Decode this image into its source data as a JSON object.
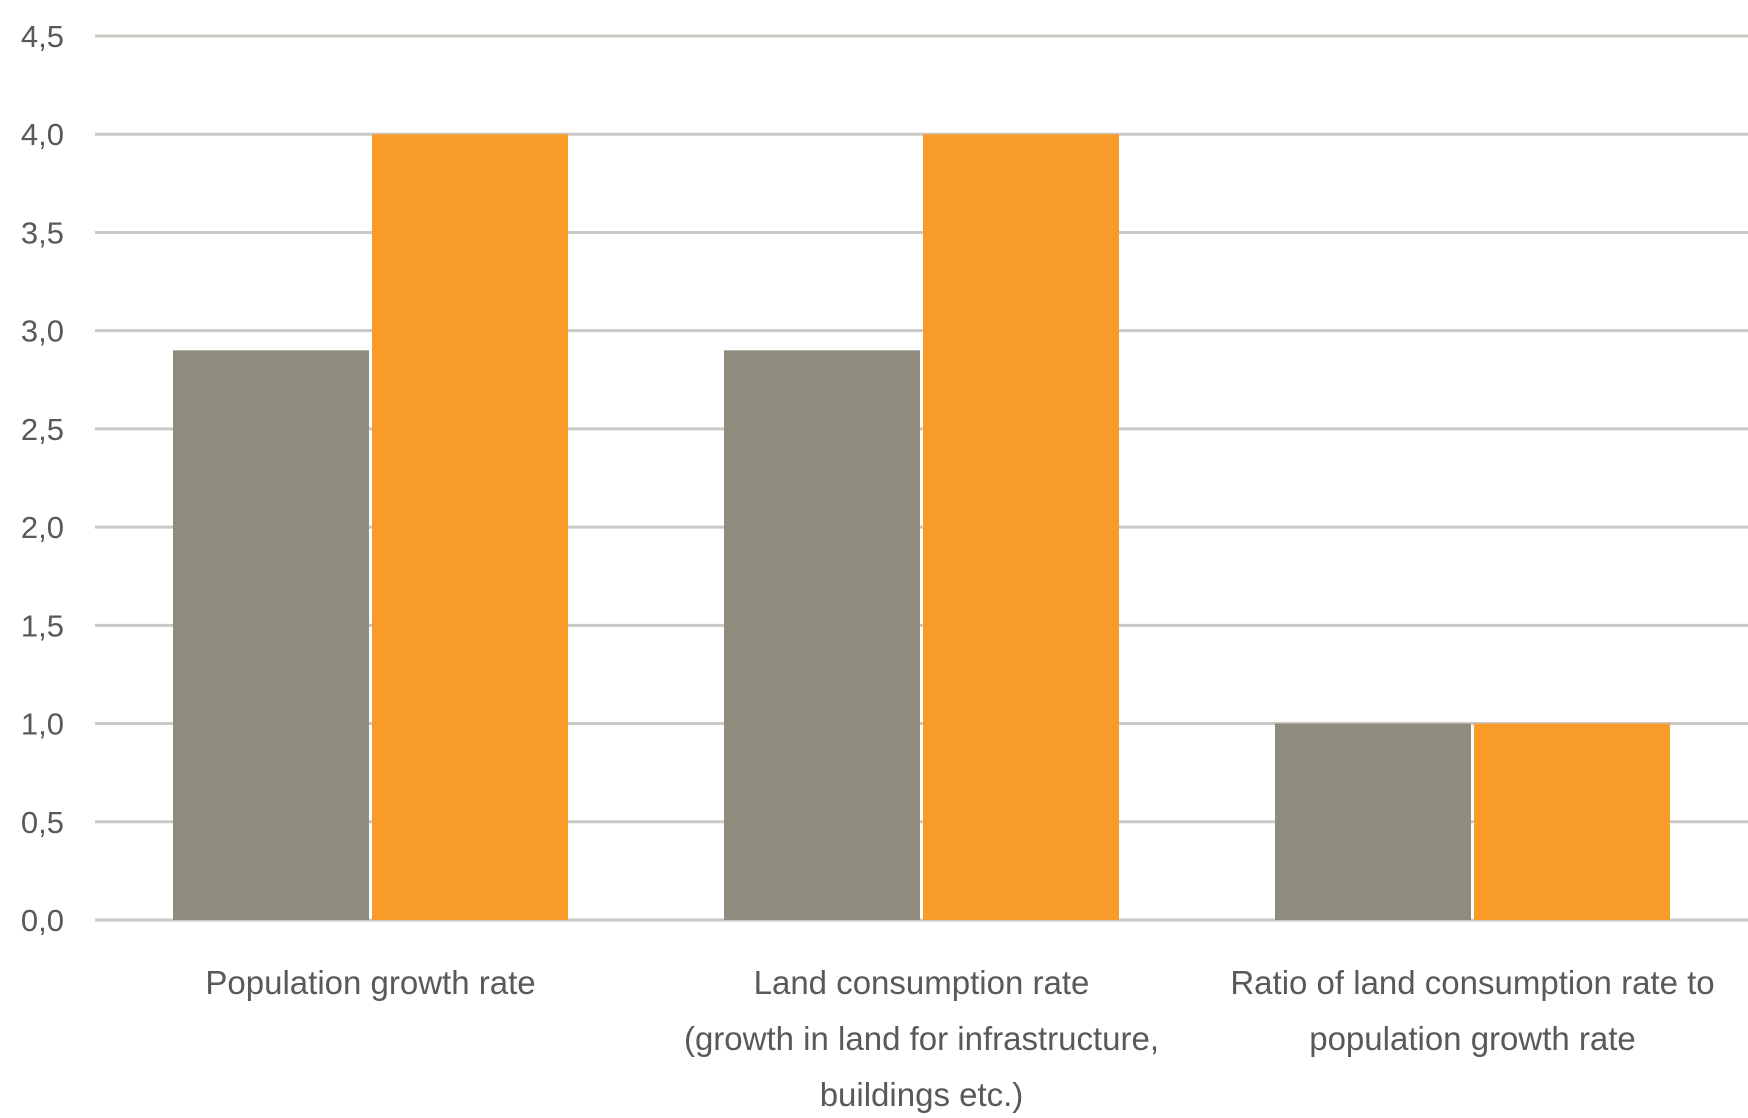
{
  "chart_data": {
    "type": "bar",
    "categories": [
      [
        "Population growth rate"
      ],
      [
        "Land consumption rate",
        "(growth in land for infrastructure,",
        "buildings etc.)"
      ],
      [
        "Ratio of land consumption rate to",
        "population growth rate"
      ]
    ],
    "series": [
      {
        "values": [
          2.9,
          2.9,
          1.0
        ],
        "color": "#8f8c7e"
      },
      {
        "values": [
          4.0,
          4.0,
          1.0
        ],
        "color": "#f99b28"
      }
    ],
    "y_ticks": [
      "0,0",
      "0,5",
      "1,0",
      "1,5",
      "2,0",
      "2,5",
      "3,0",
      "3,5",
      "4,0",
      "4,5"
    ],
    "ylim": [
      0,
      4.5
    ],
    "grid": true,
    "gridline_color": "#c9c8c3",
    "legend": "none"
  }
}
